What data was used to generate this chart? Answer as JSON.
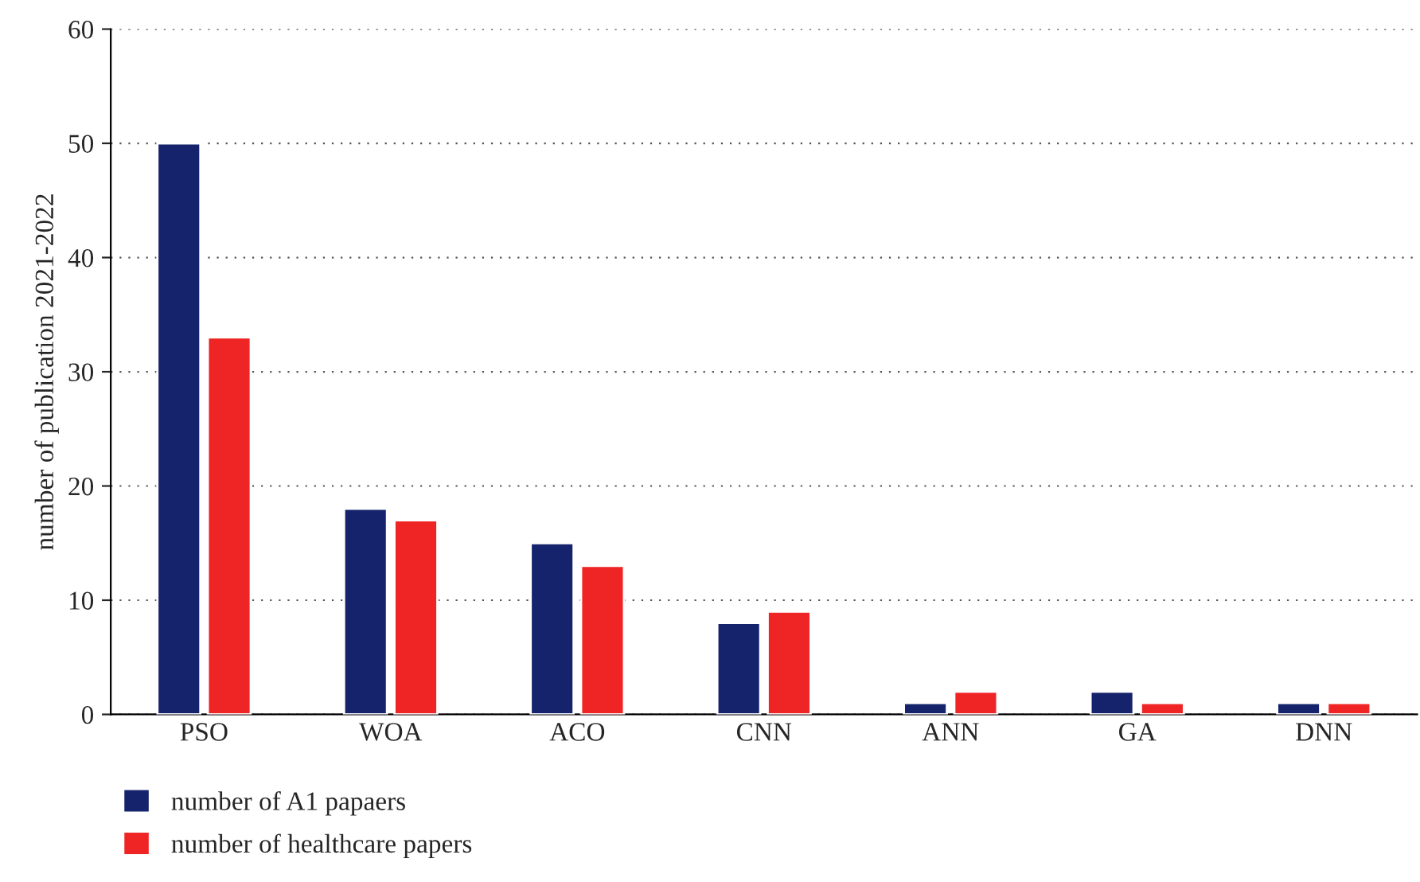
{
  "chart_data": {
    "type": "bar",
    "ylabel": "number of publication 2021-2022",
    "categories": [
      "PSO",
      "WOA",
      "ACO",
      "CNN",
      "ANN",
      "GA",
      "DNN"
    ],
    "series": [
      {
        "name": "number of A1 papaers",
        "color": "#14236b",
        "values": [
          50,
          18,
          15,
          8,
          1,
          2,
          1
        ]
      },
      {
        "name": "number of healthcare papers",
        "color": "#ee2524",
        "values": [
          33,
          17,
          13,
          9,
          2,
          1,
          1
        ]
      }
    ],
    "ylim": [
      0,
      60
    ],
    "yticks": [
      0,
      10,
      20,
      30,
      40,
      50,
      60
    ],
    "grid": "y",
    "legend": "bottom left"
  }
}
